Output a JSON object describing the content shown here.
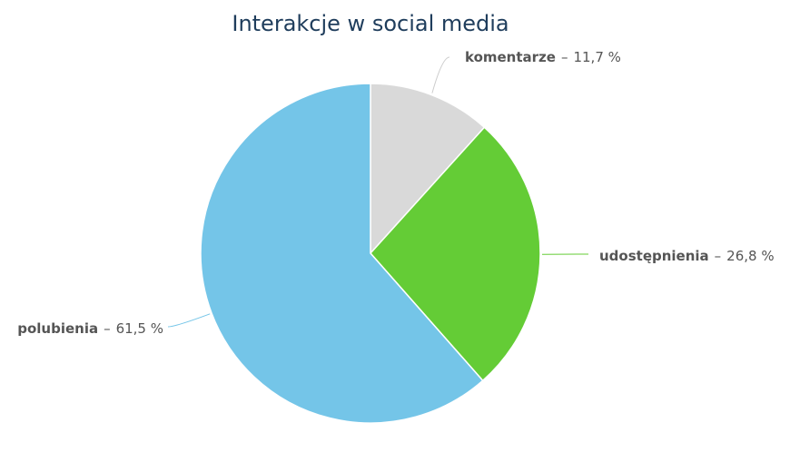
{
  "chart_data": {
    "type": "pie",
    "title": "Interakcje w social media",
    "categories": [
      "komentarze",
      "udostępnienia",
      "polubienia"
    ],
    "values": [
      11.7,
      26.8,
      61.5
    ],
    "value_labels": [
      "11,7 %",
      "26,8 %",
      "61,5 %"
    ],
    "separator": "–",
    "colors": [
      "#d9d9d9",
      "#64cc36",
      "#74c5e8"
    ]
  }
}
